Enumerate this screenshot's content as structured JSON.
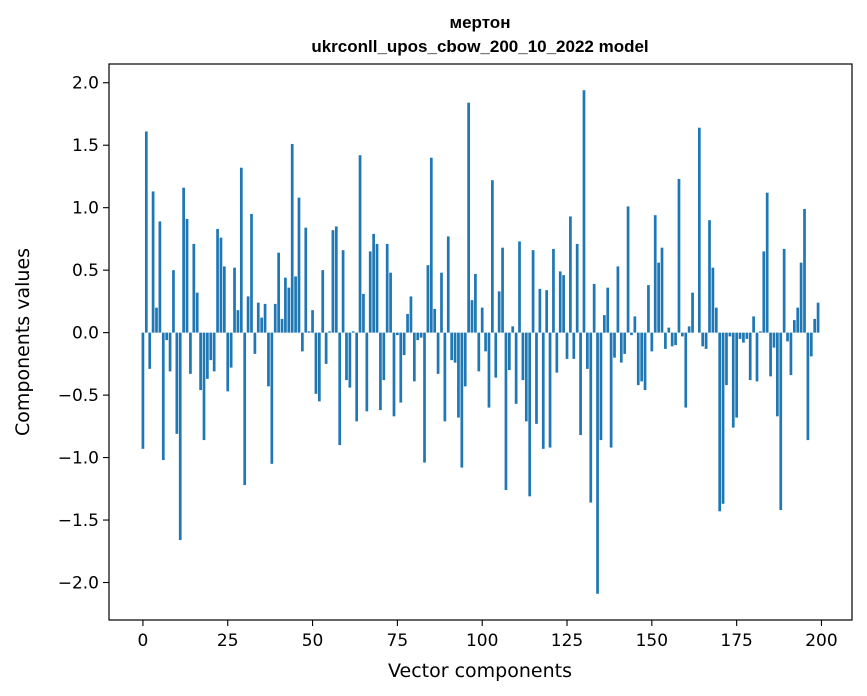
{
  "chart_data": {
    "type": "bar",
    "title": "мертон",
    "subtitle": "ukrconll_upos_cbow_200_10_2022 model",
    "xlabel": "Vector components",
    "ylabel": "Components values",
    "xlim": [
      -10,
      209
    ],
    "ylim": [
      -2.3,
      2.15
    ],
    "xticks": [
      0,
      25,
      50,
      75,
      100,
      125,
      150,
      175,
      200
    ],
    "yticks": [
      2.0,
      1.5,
      1.0,
      0.5,
      0.0,
      -0.5,
      -1.0,
      -1.5,
      -2.0
    ],
    "ytick_labels": [
      "2.0",
      "1.5",
      "1.0",
      "0.5",
      "0.0",
      "−0.5",
      "−1.0",
      "−1.5",
      "−2.0"
    ],
    "bar_color": "#1f77b4",
    "x": [
      0,
      1,
      2,
      3,
      4,
      5,
      6,
      7,
      8,
      9,
      10,
      11,
      12,
      13,
      14,
      15,
      16,
      17,
      18,
      19,
      20,
      21,
      22,
      23,
      24,
      25,
      26,
      27,
      28,
      29,
      30,
      31,
      32,
      33,
      34,
      35,
      36,
      37,
      38,
      39,
      40,
      41,
      42,
      43,
      44,
      45,
      46,
      47,
      48,
      49,
      50,
      51,
      52,
      53,
      54,
      55,
      56,
      57,
      58,
      59,
      60,
      61,
      62,
      63,
      64,
      65,
      66,
      67,
      68,
      69,
      70,
      71,
      72,
      73,
      74,
      75,
      76,
      77,
      78,
      79,
      80,
      81,
      82,
      83,
      84,
      85,
      86,
      87,
      88,
      89,
      90,
      91,
      92,
      93,
      94,
      95,
      96,
      97,
      98,
      99,
      100,
      101,
      102,
      103,
      104,
      105,
      106,
      107,
      108,
      109,
      110,
      111,
      112,
      113,
      114,
      115,
      116,
      117,
      118,
      119,
      120,
      121,
      122,
      123,
      124,
      125,
      126,
      127,
      128,
      129,
      130,
      131,
      132,
      133,
      134,
      135,
      136,
      137,
      138,
      139,
      140,
      141,
      142,
      143,
      144,
      145,
      146,
      147,
      148,
      149,
      150,
      151,
      152,
      153,
      154,
      155,
      156,
      157,
      158,
      159,
      160,
      161,
      162,
      163,
      164,
      165,
      166,
      167,
      168,
      169,
      170,
      171,
      172,
      173,
      174,
      175,
      176,
      177,
      178,
      179,
      180,
      181,
      182,
      183,
      184,
      185,
      186,
      187,
      188,
      189,
      190,
      191,
      192,
      193,
      194,
      195,
      196,
      197,
      198,
      199
    ],
    "values": [
      -0.93,
      1.61,
      -0.29,
      1.13,
      0.2,
      0.89,
      -1.02,
      -0.06,
      -0.31,
      0.5,
      -0.81,
      -1.66,
      1.16,
      0.91,
      -0.33,
      0.71,
      0.32,
      -0.46,
      -0.86,
      -0.37,
      -0.22,
      -0.31,
      0.83,
      0.76,
      0.53,
      -0.47,
      -0.28,
      0.52,
      0.18,
      1.32,
      -1.22,
      0.29,
      0.95,
      -0.17,
      0.24,
      0.12,
      0.23,
      -0.43,
      -1.05,
      0.23,
      0.64,
      0.11,
      0.44,
      0.36,
      1.51,
      0.45,
      1.08,
      -0.15,
      0.84,
      0.01,
      0.18,
      -0.49,
      -0.55,
      0.5,
      -0.25,
      0.01,
      0.82,
      0.85,
      -0.9,
      0.66,
      -0.38,
      -0.44,
      0.01,
      -0.71,
      1.42,
      0.31,
      -0.63,
      0.65,
      0.79,
      0.71,
      -0.62,
      -0.38,
      0.71,
      0.48,
      -0.67,
      -0.02,
      -0.56,
      -0.18,
      0.15,
      0.29,
      -0.39,
      -0.06,
      -0.04,
      -1.04,
      0.54,
      1.4,
      0.19,
      -0.33,
      0.48,
      -0.71,
      0.77,
      -0.22,
      -0.24,
      -0.68,
      -1.08,
      -0.43,
      1.84,
      0.26,
      0.47,
      -0.31,
      0.2,
      -0.15,
      -0.6,
      1.22,
      -0.36,
      0.33,
      0.68,
      -1.26,
      -0.3,
      0.05,
      -0.57,
      0.73,
      -0.38,
      -0.71,
      -1.31,
      0.66,
      -0.73,
      0.35,
      -0.93,
      0.34,
      -0.92,
      0.67,
      -0.32,
      0.49,
      0.46,
      -0.21,
      0.93,
      -0.21,
      0.71,
      -0.82,
      1.94,
      -0.29,
      -1.36,
      0.39,
      -2.09,
      -0.86,
      0.14,
      0.36,
      -0.92,
      -0.2,
      0.53,
      -0.24,
      -0.17,
      1.01,
      -0.02,
      0.13,
      -0.42,
      -0.39,
      -0.46,
      0.38,
      -0.15,
      0.94,
      0.56,
      0.68,
      -0.13,
      0.04,
      -0.11,
      -0.1,
      1.23,
      -0.03,
      -0.6,
      0.05,
      0.32,
      0.0,
      1.64,
      -0.11,
      -0.13,
      0.9,
      0.52,
      0.2,
      -1.43,
      -1.37,
      -0.42,
      -0.03,
      -0.76,
      -0.68,
      -0.05,
      -0.08,
      -0.05,
      -0.38,
      0.13,
      -0.39,
      0.01,
      0.65,
      1.12,
      -0.35,
      -0.12,
      -0.67,
      -1.42,
      0.67,
      -0.07,
      -0.34,
      0.1,
      0.2,
      0.56,
      0.99,
      -0.86,
      -0.19,
      0.11,
      0.24
    ]
  }
}
